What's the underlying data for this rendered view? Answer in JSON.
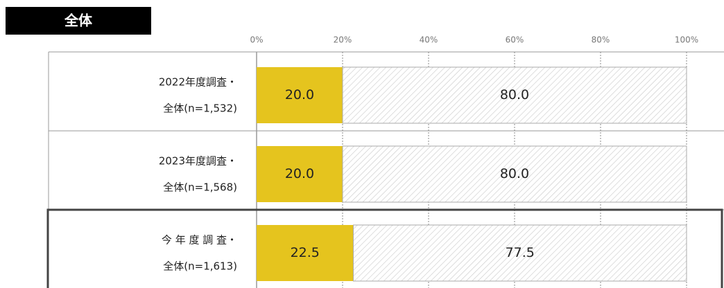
{
  "chart_data": {
    "type": "stacked-bar-horizontal",
    "title": "全体",
    "categories": [
      [
        "2022年度調査・",
        "全体(n=1,532)"
      ],
      [
        "2023年度調査・",
        "全体(n=1,568)"
      ],
      [
        "今 年 度 調 査・",
        "全体(n=1,613)"
      ]
    ],
    "series": [
      {
        "color": "#e5c41e",
        "values": [
          20.0,
          20.0,
          22.5
        ],
        "value_labels": [
          "20.0",
          "20.0",
          "22.5"
        ]
      },
      {
        "color": "hatch",
        "values": [
          80.0,
          80.0,
          77.5
        ],
        "value_labels": [
          "80.0",
          "80.0",
          "77.5"
        ]
      }
    ],
    "xlim": [
      0,
      100
    ],
    "xticks": [
      {
        "value": 0,
        "label": "0%"
      },
      {
        "value": 20,
        "label": "20%"
      },
      {
        "value": 40,
        "label": "40%"
      },
      {
        "value": 60,
        "label": "60%"
      },
      {
        "value": 80,
        "label": "80%"
      },
      {
        "value": 100,
        "label": "100%"
      }
    ],
    "grid": true
  }
}
